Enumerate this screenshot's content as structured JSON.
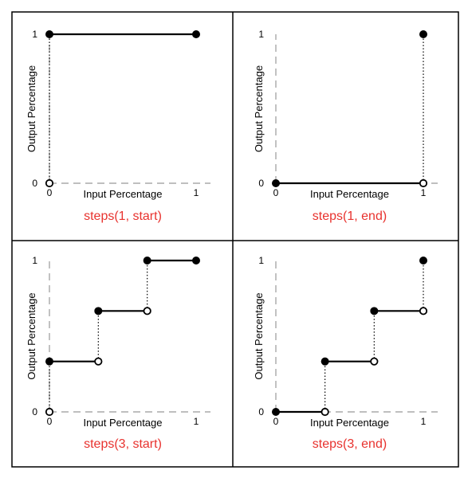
{
  "colors": {
    "caption": "#e8322e",
    "step_line": "#000000",
    "axis_dash": "#999999",
    "border": "#000000"
  },
  "chart_data": [
    {
      "type": "line",
      "title": "steps(1, start)",
      "xlabel": "Input Percentage",
      "ylabel": "Output Percentage",
      "xlim": [
        0,
        1
      ],
      "ylim": [
        0,
        1
      ],
      "x_ticks": [
        "0",
        "1"
      ],
      "y_ticks": [
        "0",
        "1"
      ],
      "segments": [
        {
          "x": [
            0,
            1
          ],
          "y": [
            1,
            1
          ]
        }
      ],
      "jumps": [
        {
          "x": 0,
          "y": [
            0,
            1
          ]
        }
      ],
      "filled_points": [
        {
          "x": 0,
          "y": 1
        },
        {
          "x": 1,
          "y": 1
        }
      ],
      "open_points": [
        {
          "x": 0,
          "y": 0
        }
      ]
    },
    {
      "type": "line",
      "title": "steps(1, end)",
      "xlabel": "Input Percentage",
      "ylabel": "Output Percentage",
      "xlim": [
        0,
        1
      ],
      "ylim": [
        0,
        1
      ],
      "x_ticks": [
        "0",
        "1"
      ],
      "y_ticks": [
        "0",
        "1"
      ],
      "segments": [
        {
          "x": [
            0,
            1
          ],
          "y": [
            0,
            0
          ]
        }
      ],
      "jumps": [
        {
          "x": 1,
          "y": [
            0,
            1
          ]
        }
      ],
      "filled_points": [
        {
          "x": 0,
          "y": 0
        },
        {
          "x": 1,
          "y": 1
        }
      ],
      "open_points": [
        {
          "x": 1,
          "y": 0
        }
      ]
    },
    {
      "type": "line",
      "title": "steps(3, start)",
      "xlabel": "Input Percentage",
      "ylabel": "Output Percentage",
      "xlim": [
        0,
        1
      ],
      "ylim": [
        0,
        1
      ],
      "x_ticks": [
        "0",
        "1"
      ],
      "y_ticks": [
        "0",
        "1"
      ],
      "segments": [
        {
          "x": [
            0,
            0.3333
          ],
          "y": [
            0.3333,
            0.3333
          ]
        },
        {
          "x": [
            0.3333,
            0.6667
          ],
          "y": [
            0.6667,
            0.6667
          ]
        },
        {
          "x": [
            0.6667,
            1
          ],
          "y": [
            1,
            1
          ]
        }
      ],
      "jumps": [
        {
          "x": 0,
          "y": [
            0,
            0.3333
          ]
        },
        {
          "x": 0.3333,
          "y": [
            0.3333,
            0.6667
          ]
        },
        {
          "x": 0.6667,
          "y": [
            0.6667,
            1
          ]
        }
      ],
      "filled_points": [
        {
          "x": 0,
          "y": 0.3333
        },
        {
          "x": 0.3333,
          "y": 0.6667
        },
        {
          "x": 0.6667,
          "y": 1
        },
        {
          "x": 1,
          "y": 1
        }
      ],
      "open_points": [
        {
          "x": 0,
          "y": 0
        },
        {
          "x": 0.3333,
          "y": 0.3333
        },
        {
          "x": 0.6667,
          "y": 0.6667
        }
      ]
    },
    {
      "type": "line",
      "title": "steps(3, end)",
      "xlabel": "Input Percentage",
      "ylabel": "Output Percentage",
      "xlim": [
        0,
        1
      ],
      "ylim": [
        0,
        1
      ],
      "x_ticks": [
        "0",
        "1"
      ],
      "y_ticks": [
        "0",
        "1"
      ],
      "segments": [
        {
          "x": [
            0,
            0.3333
          ],
          "y": [
            0,
            0
          ]
        },
        {
          "x": [
            0.3333,
            0.6667
          ],
          "y": [
            0.3333,
            0.3333
          ]
        },
        {
          "x": [
            0.6667,
            1
          ],
          "y": [
            0.6667,
            0.6667
          ]
        }
      ],
      "jumps": [
        {
          "x": 0.3333,
          "y": [
            0,
            0.3333
          ]
        },
        {
          "x": 0.6667,
          "y": [
            0.3333,
            0.6667
          ]
        },
        {
          "x": 1,
          "y": [
            0.6667,
            1
          ]
        }
      ],
      "filled_points": [
        {
          "x": 0,
          "y": 0
        },
        {
          "x": 0.3333,
          "y": 0.3333
        },
        {
          "x": 0.6667,
          "y": 0.6667
        },
        {
          "x": 1,
          "y": 1
        }
      ],
      "open_points": [
        {
          "x": 0.3333,
          "y": 0
        },
        {
          "x": 0.6667,
          "y": 0.3333
        },
        {
          "x": 1,
          "y": 0.6667
        }
      ]
    }
  ]
}
